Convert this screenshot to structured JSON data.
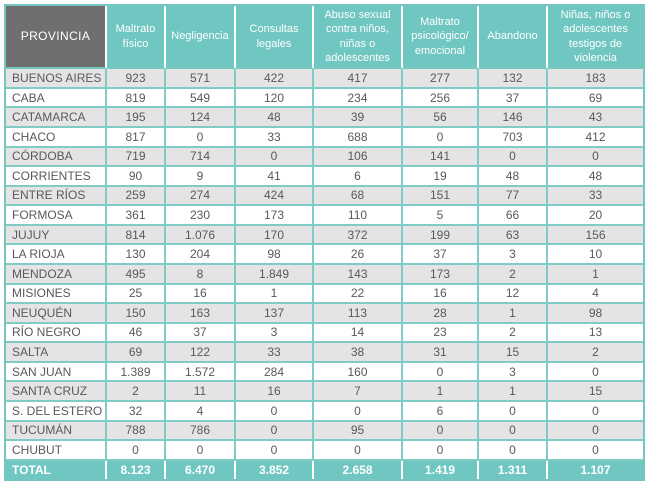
{
  "colors": {
    "header_teal": "#70c6c0",
    "header_dark_gray": "#6e6f6e",
    "border_teal": "#7fccc6",
    "outer_border_teal": "#74c7c1",
    "row_alt_gray": "#e4e4e4",
    "row_white": "#ffffff",
    "cell_text": "#58595b",
    "header_text": "#ffffff"
  },
  "chart_data": {
    "type": "table",
    "columns": [
      "PROVINCIA",
      "Maltrato físico",
      "Negligencia",
      "Consultas legales",
      "Abuso sexual contra niños, niñas o adolescentes",
      "Maltrato psicológico/ emocional",
      "Abandono",
      "Niñas, niños o adolescentes testigos de violencia"
    ],
    "rows": [
      [
        "BUENOS AIRES",
        "923",
        "571",
        "422",
        "417",
        "277",
        "132",
        "183"
      ],
      [
        "CABA",
        "819",
        "549",
        "120",
        "234",
        "256",
        "37",
        "69"
      ],
      [
        "CATAMARCA",
        "195",
        "124",
        "48",
        "39",
        "56",
        "146",
        "43"
      ],
      [
        "CHACO",
        "817",
        "0",
        "33",
        "688",
        "0",
        "703",
        "412"
      ],
      [
        "CÓRDOBA",
        "719",
        "714",
        "0",
        "106",
        "141",
        "0",
        "0"
      ],
      [
        "CORRIENTES",
        "90",
        "9",
        "41",
        "6",
        "19",
        "48",
        "48"
      ],
      [
        "ENTRE RÍOS",
        "259",
        "274",
        "424",
        "68",
        "151",
        "77",
        "33"
      ],
      [
        "FORMOSA",
        "361",
        "230",
        "173",
        "110",
        "5",
        "66",
        "20"
      ],
      [
        "JUJUY",
        "814",
        "1.076",
        "170",
        "372",
        "199",
        "63",
        "156"
      ],
      [
        "LA RIOJA",
        "130",
        "204",
        "98",
        "26",
        "37",
        "3",
        "10"
      ],
      [
        "MENDOZA",
        "495",
        "8",
        "1.849",
        "143",
        "173",
        "2",
        "1"
      ],
      [
        "MISIONES",
        "25",
        "16",
        "1",
        "22",
        "16",
        "12",
        "4"
      ],
      [
        "NEUQUÉN",
        "150",
        "163",
        "137",
        "113",
        "28",
        "1",
        "98"
      ],
      [
        "RÍO NEGRO",
        "46",
        "37",
        "3",
        "14",
        "23",
        "2",
        "13"
      ],
      [
        "SALTA",
        "69",
        "122",
        "33",
        "38",
        "31",
        "15",
        "2"
      ],
      [
        "SAN JUAN",
        "1.389",
        "1.572",
        "284",
        "160",
        "0",
        "3",
        "0"
      ],
      [
        "SANTA CRUZ",
        "2",
        "11",
        "16",
        "7",
        "1",
        "1",
        "15"
      ],
      [
        "S. DEL ESTERO",
        "32",
        "4",
        "0",
        "0",
        "6",
        "0",
        "0"
      ],
      [
        "TUCUMÁN",
        "788",
        "786",
        "0",
        "95",
        "0",
        "0",
        "0"
      ],
      [
        "CHUBUT",
        "0",
        "0",
        "0",
        "0",
        "0",
        "0",
        "0"
      ]
    ],
    "total_row": [
      "TOTAL",
      "8.123",
      "6.470",
      "3.852",
      "2.658",
      "1.419",
      "1.311",
      "1.107"
    ]
  }
}
